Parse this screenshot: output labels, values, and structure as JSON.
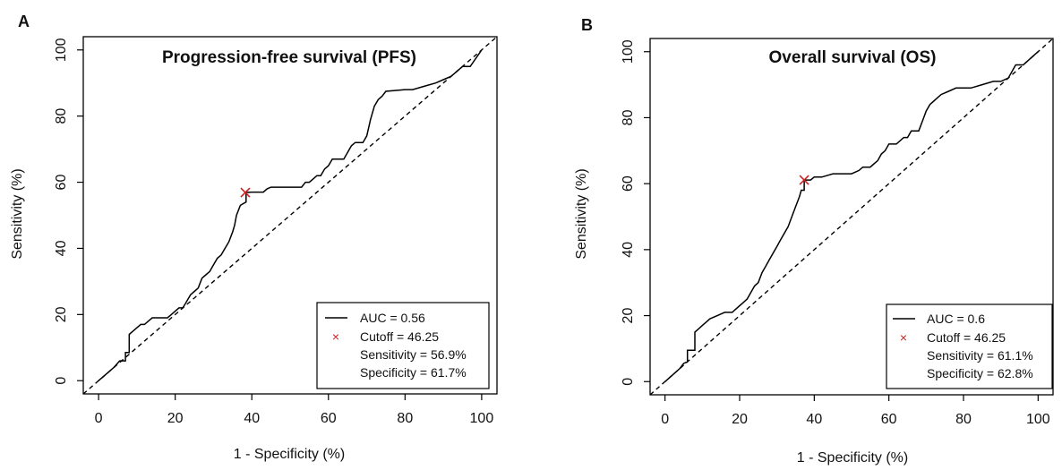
{
  "chart_data": [
    {
      "panel_letter": "A",
      "type": "line",
      "title": "Progression-free survival (PFS)",
      "xlabel": "1 - Specificity (%)",
      "ylabel": "Sensitivity (%)",
      "xlim": [
        -4,
        104
      ],
      "ylim": [
        -4,
        104
      ],
      "xticks": [
        0,
        20,
        40,
        60,
        80,
        100
      ],
      "yticks": [
        0,
        20,
        40,
        60,
        80,
        100
      ],
      "grid": false,
      "legend_position": "bottom-right",
      "reference_line": {
        "style": "dashed",
        "x": [
          -4,
          104
        ],
        "y": [
          -4,
          104
        ]
      },
      "series": [
        {
          "x": [
            0,
            2,
            4,
            5.5,
            7,
            7,
            8,
            8,
            9,
            10,
            11,
            12,
            13,
            14,
            16,
            18,
            19,
            20,
            21,
            22,
            23,
            24,
            25,
            26,
            27,
            28,
            29,
            30,
            31,
            32,
            33,
            34,
            35,
            35.5,
            36,
            37,
            38.5,
            38.5,
            40,
            41,
            42,
            43,
            44,
            45,
            46,
            48,
            50,
            52,
            53,
            54,
            55,
            56,
            57,
            58,
            59,
            60,
            61,
            62,
            63,
            64,
            65,
            66,
            67,
            68,
            69,
            70,
            71,
            72,
            73,
            74,
            75,
            80,
            82,
            85,
            88,
            90,
            92,
            95,
            97,
            100
          ],
          "y": [
            0,
            2,
            4,
            6,
            6,
            8.5,
            8.5,
            14,
            15,
            16,
            17,
            17,
            18,
            19,
            19,
            19,
            20,
            21,
            22,
            22,
            24,
            26,
            27,
            28,
            31,
            32,
            33,
            35,
            37,
            38,
            40,
            42,
            45,
            47,
            50,
            53,
            54,
            56.9,
            57,
            57,
            57,
            57,
            58,
            58.5,
            58.5,
            58.5,
            58.5,
            58.5,
            58.5,
            60,
            60,
            61,
            62,
            62,
            64,
            65,
            67,
            67,
            67,
            67,
            69,
            71,
            72,
            72,
            72,
            74,
            79,
            83,
            85,
            86,
            87.5,
            88,
            88,
            89,
            90,
            91,
            92,
            95,
            95,
            100
          ]
        }
      ],
      "cutoff_point": {
        "x": 38.3,
        "y": 56.9
      },
      "legend": {
        "line_label": "AUC = 0.56",
        "marker_label": "Cutoff = 46.25",
        "sensitivity": "Sensitivity = 56.9%",
        "specificity": "Specificity = 61.7%"
      }
    },
    {
      "panel_letter": "B",
      "type": "line",
      "title": "Overall survival (OS)",
      "xlabel": "1 - Specificity (%)",
      "ylabel": "Sensitivity (%)",
      "xlim": [
        -4,
        104
      ],
      "ylim": [
        -4,
        104
      ],
      "xticks": [
        0,
        20,
        40,
        60,
        80,
        100
      ],
      "yticks": [
        0,
        20,
        40,
        60,
        80,
        100
      ],
      "grid": false,
      "legend_position": "bottom-right",
      "reference_line": {
        "style": "dashed",
        "x": [
          -4,
          104
        ],
        "y": [
          -4,
          104
        ]
      },
      "series": [
        {
          "x": [
            0,
            2,
            4,
            5,
            6,
            6,
            8,
            8,
            9,
            10,
            11,
            12,
            14,
            16,
            17,
            18,
            19,
            20,
            21,
            22,
            23,
            24,
            25,
            26,
            27,
            28,
            29,
            30,
            31,
            32,
            33,
            34,
            35,
            36,
            36.5,
            37.3,
            37.3,
            39,
            40,
            42,
            45,
            48,
            50,
            52,
            53,
            55,
            56,
            57,
            58,
            59,
            60,
            62,
            64,
            65,
            66,
            67,
            68,
            69,
            70,
            71,
            72,
            73,
            74,
            76,
            78,
            80,
            82,
            85,
            88,
            90,
            92,
            94,
            96,
            98,
            100
          ],
          "y": [
            0,
            2,
            4,
            5.5,
            6,
            9.5,
            9.5,
            15,
            16,
            17,
            18,
            19,
            20,
            21,
            21,
            21,
            22,
            23,
            24,
            25,
            27,
            29,
            30,
            33,
            35,
            37,
            39,
            41,
            43,
            45,
            47,
            50,
            53,
            56,
            58,
            58,
            61.1,
            61.1,
            62,
            62,
            63,
            63,
            63,
            64,
            65,
            65,
            66,
            67,
            69,
            70,
            72,
            72,
            74,
            74,
            76,
            76,
            76,
            79,
            82,
            84,
            85,
            86,
            87,
            88,
            89,
            89,
            89,
            90,
            91,
            91,
            92,
            96,
            96,
            98,
            100
          ]
        }
      ],
      "cutoff_point": {
        "x": 37.3,
        "y": 61.1
      },
      "legend": {
        "line_label": "AUC = 0.6",
        "marker_label": "Cutoff = 46.25",
        "sensitivity": "Sensitivity = 61.1%",
        "specificity": "Specificity = 62.8%"
      }
    }
  ]
}
